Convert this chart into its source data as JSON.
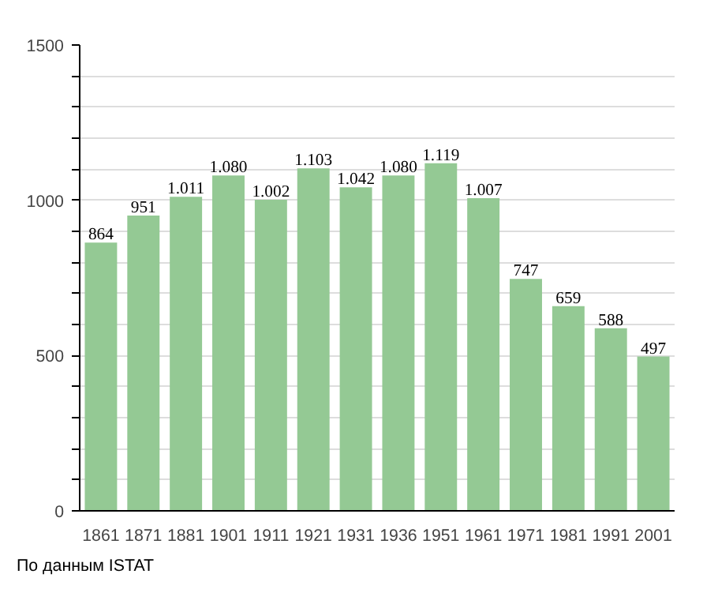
{
  "chart_data": {
    "type": "bar",
    "categories": [
      "1861",
      "1871",
      "1881",
      "1901",
      "1911",
      "1921",
      "1931",
      "1936",
      "1951",
      "1961",
      "1971",
      "1981",
      "1991",
      "2001"
    ],
    "values": [
      864,
      951,
      1011,
      1080,
      1002,
      1103,
      1042,
      1080,
      1119,
      1007,
      747,
      659,
      588,
      497
    ],
    "value_labels": [
      "864",
      "951",
      "1.011",
      "1.080",
      "1.002",
      "1.103",
      "1.042",
      "1.080",
      "1.119",
      "1.007",
      "747",
      "659",
      "588",
      "497"
    ],
    "color": "#94c994",
    "ylim": [
      0,
      1500
    ],
    "yticks": [
      0,
      {
        "value": 100,
        "label": null
      },
      {
        "value": 200,
        "label": null
      },
      {
        "value": 300,
        "label": null
      },
      {
        "value": 400,
        "label": null
      },
      500,
      {
        "value": 600,
        "label": null
      },
      {
        "value": 700,
        "label": null
      },
      {
        "value": 800,
        "label": null
      },
      {
        "value": 900,
        "label": null
      },
      1000,
      {
        "value": 1100,
        "label": null
      },
      {
        "value": 1200,
        "label": null
      },
      {
        "value": 1300,
        "label": null
      },
      {
        "value": 1400,
        "label": null
      },
      1500
    ],
    "grid": "y",
    "annotations": [
      "По данным ISTAT"
    ]
  }
}
